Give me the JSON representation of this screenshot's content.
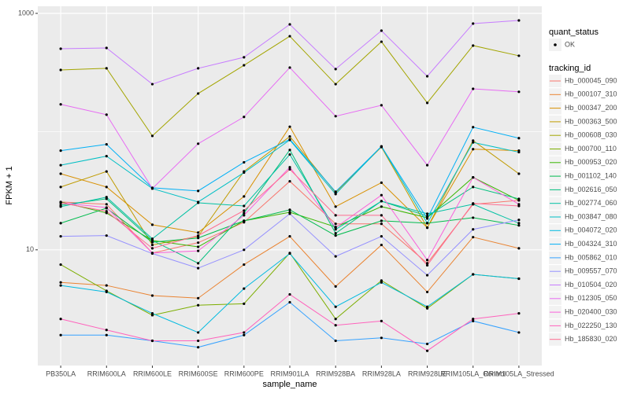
{
  "chart_data": {
    "type": "line",
    "x_label": "sample_name",
    "y_label": "FPKM + 1",
    "log_y": true,
    "grid": true,
    "categories": [
      "PB350LA",
      "RRIM600LA",
      "RRIM600LE",
      "RRIM600SE",
      "RRIM600PE",
      "RRIM901LA",
      "RRIM928BA",
      "RRIM928LA",
      "RRIM928LE",
      "RRIM105LA_Control",
      "RRIM105LA_Stressed"
    ],
    "ylim": [
      1.05,
      1148
    ],
    "yticks": [
      10,
      1000
    ],
    "point_color": "#000000",
    "shape_legend": {
      "title": "quant_status",
      "entries": [
        "OK"
      ]
    },
    "legend_title": "tracking_id",
    "series": [
      {
        "name": "Hb_000045_090",
        "color": "#F8766D",
        "values": [
          25.4,
          24.3,
          9.4,
          11.5,
          17.1,
          38,
          16.6,
          16.6,
          7.7,
          24.3,
          26.2
        ]
      },
      {
        "name": "Hb_000107_310",
        "color": "#EA8331",
        "values": [
          5.3,
          5.0,
          4.1,
          3.9,
          7.5,
          13,
          4.9,
          11,
          4.4,
          12.8,
          10.3
        ]
      },
      {
        "name": "Hb_000347_200",
        "color": "#D89000",
        "values": [
          44,
          34,
          16.3,
          14,
          28.3,
          110,
          23.2,
          37,
          15.4,
          71,
          69
        ]
      },
      {
        "name": "Hb_000363_500",
        "color": "#C09B00",
        "values": [
          34,
          46,
          11,
          13,
          46,
          91,
          30.5,
          74,
          15.4,
          84,
          44
        ]
      },
      {
        "name": "Hb_000608_030",
        "color": "#A3A500",
        "values": [
          332,
          343,
          92,
          210,
          364,
          641,
          252,
          576,
          175,
          534,
          438
        ]
      },
      {
        "name": "Hb_000700_110",
        "color": "#7CAE00",
        "values": [
          7.5,
          4.5,
          2.8,
          3.4,
          3.5,
          9.4,
          2.6,
          5.5,
          3.2,
          6.2,
          5.7
        ]
      },
      {
        "name": "Hb_000953_020",
        "color": "#39B600",
        "values": [
          25.4,
          20.5,
          12,
          10.6,
          17.6,
          20.8,
          15.6,
          23.2,
          18.7,
          41,
          26.2
        ]
      },
      {
        "name": "Hb_001102_140",
        "color": "#00BB4E",
        "values": [
          16.8,
          22.5,
          11.6,
          12.6,
          17.6,
          21.8,
          13.2,
          17.6,
          16.8,
          18.7,
          16.1
        ]
      },
      {
        "name": "Hb_002616_050",
        "color": "#00BF7D",
        "values": [
          23.9,
          27,
          12,
          7.7,
          20.5,
          70,
          13.8,
          25.8,
          19.3,
          34,
          27
        ]
      },
      {
        "name": "Hb_002774_060",
        "color": "#00C1A3",
        "values": [
          23.2,
          27.9,
          12.4,
          25,
          23.5,
          64,
          14.9,
          25.8,
          20.2,
          24.3,
          16.8
        ]
      },
      {
        "name": "Hb_003847_080",
        "color": "#00BFC4",
        "values": [
          52,
          62,
          33,
          25.4,
          45,
          85,
          29.6,
          75,
          16.8,
          81,
          67
        ]
      },
      {
        "name": "Hb_004072_020",
        "color": "#00BAE0",
        "values": [
          5.0,
          4.4,
          2.9,
          2.0,
          4.7,
          9.3,
          3.3,
          5.3,
          3.3,
          6.2,
          5.7
        ]
      },
      {
        "name": "Hb_004324_310",
        "color": "#00B0F6",
        "values": [
          69,
          78,
          33.5,
          31.5,
          55,
          86,
          31,
          75,
          18.4,
          109,
          88
        ]
      },
      {
        "name": "Hb_005862_010",
        "color": "#35A2FF",
        "values": [
          1.9,
          1.9,
          1.7,
          1.5,
          1.9,
          3.6,
          1.7,
          1.8,
          1.6,
          2.5,
          2.0
        ]
      },
      {
        "name": "Hb_009557_070",
        "color": "#9590FF",
        "values": [
          13,
          13.2,
          9.3,
          7,
          10,
          20.2,
          8.8,
          13,
          6.1,
          14.9,
          17.9
        ]
      },
      {
        "name": "Hb_010504_020",
        "color": "#C77CFF",
        "values": [
          502,
          510,
          252,
          343,
          425,
          807,
          338,
          714,
          294,
          820,
          871
        ]
      },
      {
        "name": "Hb_012305_050",
        "color": "#E76BF3",
        "values": [
          170,
          139,
          33,
          79,
          133,
          348,
          135,
          167,
          52,
          230,
          217
        ]
      },
      {
        "name": "Hb_020400_030",
        "color": "#FA62DB",
        "values": [
          25,
          22.8,
          9.4,
          9.8,
          19.6,
          50,
          15.4,
          29,
          8.2,
          41,
          24.3
        ]
      },
      {
        "name": "Hb_022250_130",
        "color": "#FF62BC",
        "values": [
          2.6,
          2.1,
          1.7,
          1.7,
          2.0,
          4.2,
          2.3,
          2.5,
          1.4,
          2.6,
          2.9
        ]
      },
      {
        "name": "Hb_185830_020",
        "color": "#FF6C91",
        "values": [
          25,
          21.2,
          10.3,
          13.2,
          21.5,
          48,
          19.6,
          19.6,
          7.4,
          24.7,
          23.5
        ]
      }
    ]
  }
}
